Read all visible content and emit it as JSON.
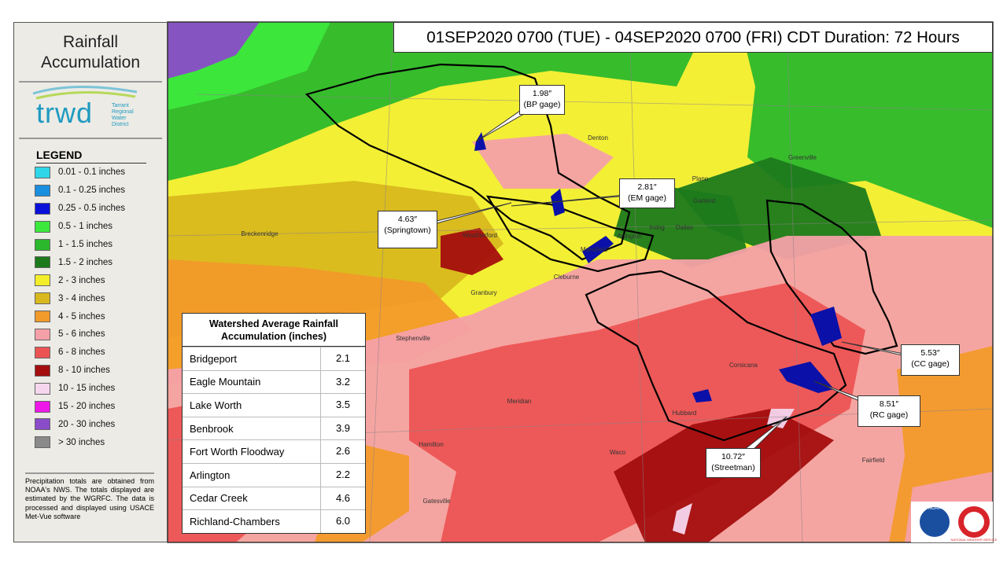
{
  "sidebar": {
    "title_lines": [
      "Rainfall",
      "Accumulation"
    ],
    "logo": {
      "name": "trwd",
      "org_lines": [
        "Tarrant",
        "Regional",
        "Water",
        "District"
      ]
    },
    "legend": {
      "title": "LEGEND",
      "items": [
        {
          "label": "0.01 - 0.1 inches",
          "color": "#2fd6e8"
        },
        {
          "label": "0.1 - 0.25 inches",
          "color": "#1a8fe0"
        },
        {
          "label": "0.25 - 0.5 inches",
          "color": "#0a10d8"
        },
        {
          "label": "0.5 - 1 inches",
          "color": "#3ce83c"
        },
        {
          "label": "1 - 1.5 inches",
          "color": "#2cb82c"
        },
        {
          "label": "1.5 - 2 inches",
          "color": "#1c7a1c"
        },
        {
          "label": "2 - 3 inches",
          "color": "#f2ee2a"
        },
        {
          "label": "3 - 4 inches",
          "color": "#d8b81e"
        },
        {
          "label": "4 - 5 inches",
          "color": "#f29a2a"
        },
        {
          "label": "5 - 6 inches",
          "color": "#f4a0a8"
        },
        {
          "label": "6 - 8 inches",
          "color": "#ec5454"
        },
        {
          "label": "8 - 10 inches",
          "color": "#a40e0e"
        },
        {
          "label": "10 - 15 inches",
          "color": "#f6d6ee"
        },
        {
          "label": "15 - 20 inches",
          "color": "#ee18e8"
        },
        {
          "label": "20 - 30 inches",
          "color": "#8a4cc8"
        },
        {
          "label": "> 30 inches",
          "color": "#8a8a8a"
        }
      ]
    },
    "note": "Precipitation totals are obtained from NOAA's NWS. The totals displayed are estimated by the WGRFC. The data is processed and displayed using USACE Met-Vue software"
  },
  "map": {
    "title": "01SEP2020 0700 (TUE) - 04SEP2020 0700 (FRI) CDT Duration: 72 Hours",
    "callouts": [
      {
        "value": "1.98″",
        "gage": "(BP gage)"
      },
      {
        "value": "2.81″",
        "gage": "(EM gage)"
      },
      {
        "value": "4.63″",
        "gage": "(Springtown)"
      },
      {
        "value": "5.53″",
        "gage": "(CC gage)"
      },
      {
        "value": "8.51″",
        "gage": "(RC gage)"
      },
      {
        "value": "10.72″",
        "gage": "(Streetman)"
      }
    ],
    "places": [
      "Denton",
      "Plano",
      "Garland",
      "Dallas",
      "Irving",
      "Arlington",
      "Mansfield",
      "Weatherford",
      "Granbury",
      "Stephenville",
      "Breckenridge",
      "Corsicana",
      "Waco",
      "Hubbard",
      "Hamilton",
      "Fairfield",
      "Greenville",
      "Meridian",
      "Cleburne",
      "Gatesville"
    ],
    "table": {
      "title_lines": [
        "Watershed Average Rainfall",
        "Accumulation (inches)"
      ],
      "rows": [
        [
          "Bridgeport",
          "2.1"
        ],
        [
          "Eagle Mountain",
          "3.2"
        ],
        [
          "Lake Worth",
          "3.5"
        ],
        [
          "Benbrook",
          "3.9"
        ],
        [
          "Fort Worth  Floodway",
          "2.6"
        ],
        [
          "Arlington",
          "2.2"
        ],
        [
          "Cedar Creek",
          "4.6"
        ],
        [
          "Richland-Chambers",
          "6.0"
        ]
      ]
    },
    "agency_logos": [
      "NOAA",
      "NATIONAL WEATHER SERVICE"
    ]
  }
}
